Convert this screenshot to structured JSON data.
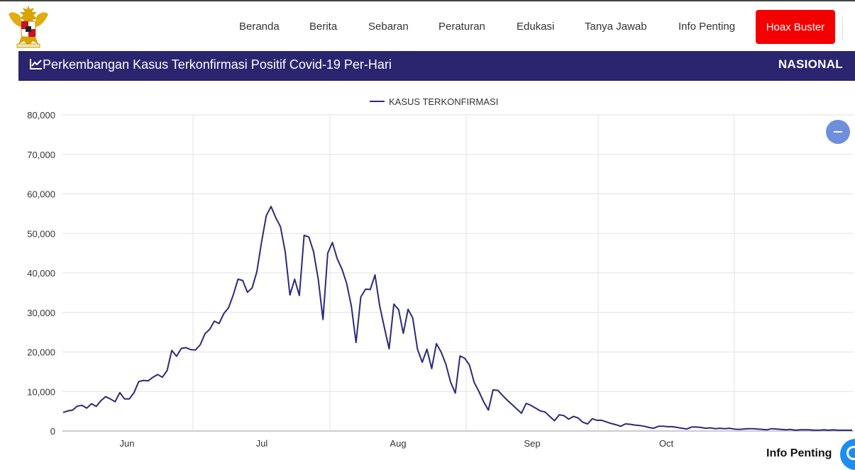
{
  "header": {
    "logo_name": "garuda-pancasila-emblem",
    "nav": [
      "Beranda",
      "Berita",
      "Sebaran",
      "Peraturan",
      "Edukasi",
      "Tanya Jawab",
      "Info Penting"
    ],
    "hoax_button": "Hoax Buster",
    "hoax_color": "#f40000"
  },
  "banner": {
    "title": "Perkembangan Kasus Terkonfirmasi Positif Covid-19 Per-Hari",
    "region": "NASIONAL",
    "icon": "line-chart-icon",
    "color": "#2b2570"
  },
  "floating": {
    "info_label": "Info Penting",
    "reset_icon": "minus-icon",
    "chat_icon": "chat-icon"
  },
  "chart_data": {
    "type": "line",
    "title": "",
    "xlabel": "",
    "ylabel": "",
    "ylim": [
      0,
      80000
    ],
    "yticks": [
      "80,000",
      "70,000",
      "60,000",
      "50,000",
      "40,000",
      "30,000",
      "20,000",
      "10,000",
      "0"
    ],
    "xticks": [
      "Jun",
      "Jul",
      "Aug",
      "Sep",
      "Oct"
    ],
    "grid": true,
    "legend_position": "top-center",
    "series": [
      {
        "name": "KASUS TERKONFIRMASI",
        "color": "#2b2a7a",
        "values": [
          4700,
          5100,
          5300,
          6300,
          6500,
          5800,
          6900,
          6200,
          7700,
          8700,
          8100,
          7400,
          9700,
          8100,
          8100,
          9700,
          12500,
          12800,
          12700,
          13600,
          14300,
          13600,
          15300,
          20400,
          18900,
          20900,
          21100,
          20600,
          20500,
          21800,
          24600,
          25700,
          27800,
          27200,
          29700,
          31200,
          34400,
          38400,
          38100,
          35100,
          36200,
          40300,
          47900,
          54500,
          56800,
          54000,
          51700,
          45300,
          34400,
          38400,
          34300,
          49500,
          49100,
          45400,
          38300,
          28200,
          45000,
          47700,
          43600,
          41000,
          37400,
          31600,
          22400,
          33900,
          35900,
          35800,
          39500,
          31700,
          26100,
          20800,
          32100,
          30700,
          24700,
          30800,
          28600,
          20700,
          17400,
          20700,
          15800,
          22100,
          20000,
          16900,
          12400,
          9600,
          19000,
          18400,
          16700,
          12300,
          10000,
          7400,
          5300,
          10400,
          10300,
          9000,
          7800,
          6700,
          5600,
          4500,
          7000,
          6500,
          5800,
          5100,
          4800,
          3700,
          2600,
          4100,
          3900,
          3000,
          3700,
          3300,
          2200,
          1800,
          3100,
          2700,
          2700,
          2300,
          1900,
          1600,
          1200,
          1800,
          1700,
          1500,
          1400,
          1200,
          900,
          700,
          1200,
          1200,
          1100,
          1100,
          900,
          700,
          500,
          1000,
          1000,
          900,
          700,
          800,
          600,
          700,
          600,
          700,
          500,
          400,
          500,
          600,
          600,
          500,
          400,
          300,
          600,
          500,
          400,
          300,
          400,
          200,
          300,
          300,
          300,
          200,
          200,
          300,
          200,
          300,
          200,
          200,
          200,
          200
        ]
      }
    ]
  }
}
